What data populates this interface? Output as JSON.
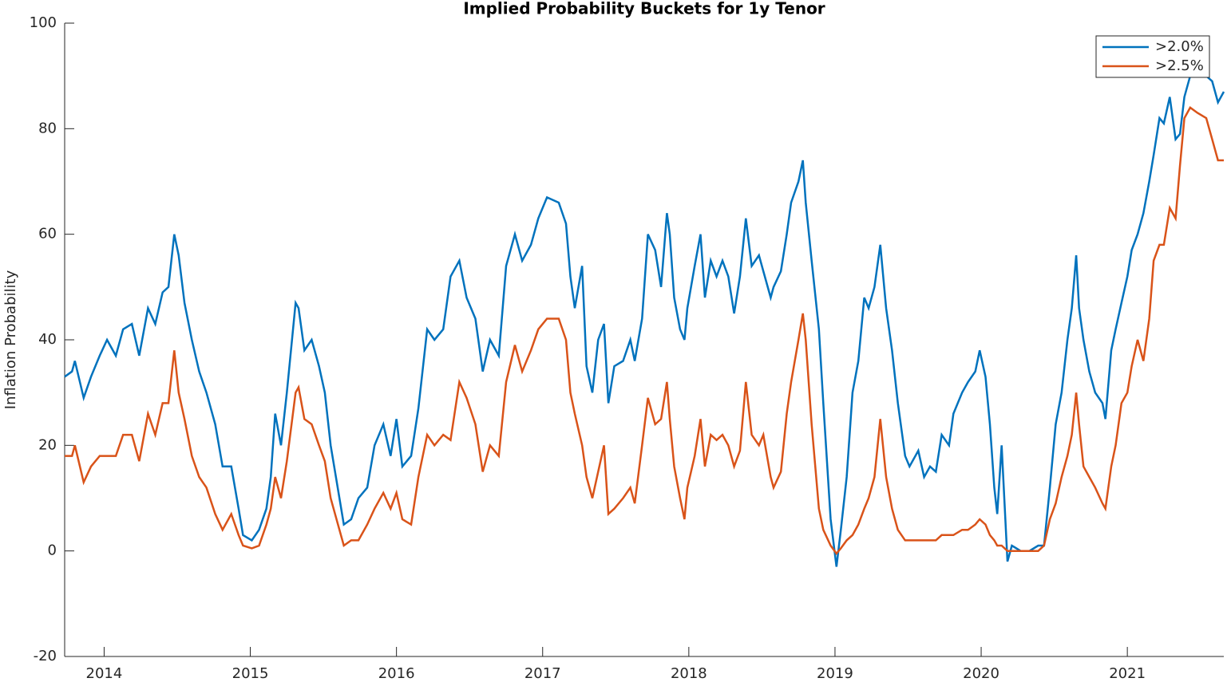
{
  "chart_data": {
    "type": "line",
    "title": "Implied Probability Buckets for 1y Tenor",
    "ylabel": "Inflation Probability",
    "x": [
      2013.73,
      2013.78,
      2013.8,
      2013.86,
      2013.91,
      2013.97,
      2014.02,
      2014.08,
      2014.13,
      2014.19,
      2014.24,
      2014.3,
      2014.35,
      2014.4,
      2014.44,
      2014.48,
      2014.51,
      2014.55,
      2014.6,
      2014.65,
      2014.7,
      2014.76,
      2014.81,
      2014.87,
      2014.92,
      2014.95,
      2015.01,
      2015.06,
      2015.11,
      2015.14,
      2015.17,
      2015.21,
      2015.25,
      2015.31,
      2015.33,
      2015.37,
      2015.42,
      2015.47,
      2015.51,
      2015.55,
      2015.61,
      2015.64,
      2015.69,
      2015.74,
      2015.8,
      2015.85,
      2015.91,
      2015.96,
      2016.0,
      2016.04,
      2016.1,
      2016.15,
      2016.21,
      2016.26,
      2016.32,
      2016.37,
      2016.43,
      2016.48,
      2016.54,
      2016.59,
      2016.64,
      2016.7,
      2016.75,
      2016.81,
      2016.86,
      2016.92,
      2016.97,
      2017.03,
      2017.11,
      2017.16,
      2017.19,
      2017.22,
      2017.27,
      2017.3,
      2017.34,
      2017.38,
      2017.42,
      2017.45,
      2017.49,
      2017.55,
      2017.6,
      2017.63,
      2017.68,
      2017.72,
      2017.77,
      2017.81,
      2017.85,
      2017.87,
      2017.9,
      2017.94,
      2017.97,
      2017.99,
      2018.04,
      2018.08,
      2018.11,
      2018.15,
      2018.19,
      2018.23,
      2018.27,
      2018.31,
      2018.35,
      2018.39,
      2018.43,
      2018.48,
      2018.51,
      2018.56,
      2018.58,
      2018.63,
      2018.67,
      2018.7,
      2018.75,
      2018.78,
      2018.8,
      2018.84,
      2018.89,
      2018.92,
      2018.97,
      2019.01,
      2019.04,
      2019.08,
      2019.12,
      2019.16,
      2019.2,
      2019.23,
      2019.27,
      2019.31,
      2019.35,
      2019.39,
      2019.43,
      2019.48,
      2019.51,
      2019.57,
      2019.61,
      2019.65,
      2019.69,
      2019.73,
      2019.78,
      2019.81,
      2019.87,
      2019.91,
      2019.96,
      2019.99,
      2020.03,
      2020.06,
      2020.09,
      2020.11,
      2020.14,
      2020.18,
      2020.21,
      2020.27,
      2020.33,
      2020.39,
      2020.43,
      2020.47,
      2020.51,
      2020.55,
      2020.59,
      2020.62,
      2020.65,
      2020.67,
      2020.7,
      2020.74,
      2020.78,
      2020.83,
      2020.85,
      2020.89,
      2020.92,
      2020.96,
      2021.0,
      2021.03,
      2021.07,
      2021.11,
      2021.15,
      2021.18,
      2021.22,
      2021.25,
      2021.29,
      2021.33,
      2021.36,
      2021.39,
      2021.43,
      2021.48,
      2021.54,
      2021.58,
      2021.62,
      2021.66
    ],
    "series": [
      {
        "name": ">2.0%",
        "color": "#0072bd",
        "values": [
          33,
          34,
          36,
          29,
          33,
          37,
          40,
          37,
          42,
          43,
          37,
          46,
          43,
          49,
          50,
          60,
          56,
          47,
          40,
          34,
          30,
          24,
          16,
          16,
          8,
          3,
          2,
          4,
          8,
          14,
          26,
          20,
          30,
          47,
          46,
          38,
          40,
          35,
          30,
          20,
          10,
          5,
          6,
          10,
          12,
          20,
          24,
          18,
          25,
          16,
          18,
          27,
          42,
          40,
          42,
          52,
          55,
          48,
          44,
          34,
          40,
          37,
          54,
          60,
          55,
          58,
          63,
          67,
          66,
          62,
          52,
          46,
          54,
          35,
          30,
          40,
          43,
          28,
          35,
          36,
          40,
          36,
          44,
          60,
          57,
          50,
          64,
          60,
          48,
          42,
          40,
          46,
          54,
          60,
          48,
          55,
          52,
          55,
          52,
          45,
          52,
          63,
          54,
          56,
          53,
          48,
          50,
          53,
          60,
          66,
          70,
          74,
          66,
          55,
          42,
          28,
          6,
          -3,
          4,
          14,
          30,
          36,
          48,
          46,
          50,
          58,
          46,
          38,
          28,
          18,
          16,
          19,
          14,
          16,
          15,
          22,
          20,
          26,
          30,
          32,
          34,
          38,
          33,
          24,
          12,
          7,
          20,
          -2,
          1,
          0,
          0,
          1,
          1,
          12,
          24,
          30,
          40,
          46,
          56,
          46,
          40,
          34,
          30,
          28,
          25,
          38,
          42,
          47,
          52,
          57,
          60,
          64,
          70,
          75,
          82,
          81,
          86,
          78,
          79,
          86,
          90,
          90,
          90,
          89,
          85,
          87
        ]
      },
      {
        "name": ">2.5%",
        "color": "#d95319",
        "values": [
          18,
          18,
          20,
          13,
          16,
          18,
          18,
          18,
          22,
          22,
          17,
          26,
          22,
          28,
          28,
          38,
          30,
          25,
          18,
          14,
          12,
          7,
          4,
          7,
          3,
          1,
          0.5,
          1,
          5,
          8,
          14,
          10,
          17,
          30,
          31,
          25,
          24,
          20,
          17,
          10,
          4,
          1,
          2,
          2,
          5,
          8,
          11,
          8,
          11,
          6,
          5,
          14,
          22,
          20,
          22,
          21,
          32,
          29,
          24,
          15,
          20,
          18,
          32,
          39,
          34,
          38,
          42,
          44,
          44,
          40,
          30,
          26,
          20,
          14,
          10,
          15,
          20,
          7,
          8,
          10,
          12,
          9,
          20,
          29,
          24,
          25,
          32,
          25,
          16,
          10,
          6,
          12,
          18,
          25,
          16,
          22,
          21,
          22,
          20,
          16,
          19,
          32,
          22,
          20,
          22,
          14,
          12,
          15,
          26,
          32,
          40,
          45,
          40,
          24,
          8,
          4,
          1,
          -0.5,
          0.5,
          2,
          3,
          5,
          8,
          10,
          14,
          25,
          14,
          8,
          4,
          2,
          2,
          2,
          2,
          2,
          2,
          3,
          3,
          3,
          4,
          4,
          5,
          6,
          5,
          3,
          2,
          1,
          1,
          0,
          0,
          0,
          0,
          0,
          1,
          6,
          9,
          14,
          18,
          22,
          30,
          24,
          16,
          14,
          12,
          9,
          8,
          16,
          20,
          28,
          30,
          35,
          40,
          36,
          44,
          55,
          58,
          58,
          65,
          63,
          73,
          82,
          84,
          83,
          82,
          78,
          74,
          74
        ]
      }
    ],
    "xlim": [
      2013.73,
      2021.66
    ],
    "xticks": [
      2014,
      2015,
      2016,
      2017,
      2018,
      2019,
      2020,
      2021
    ],
    "ylim": [
      -20,
      100
    ],
    "yticks": [
      -20,
      0,
      20,
      40,
      60,
      80,
      100
    ],
    "legend": "northeast"
  }
}
